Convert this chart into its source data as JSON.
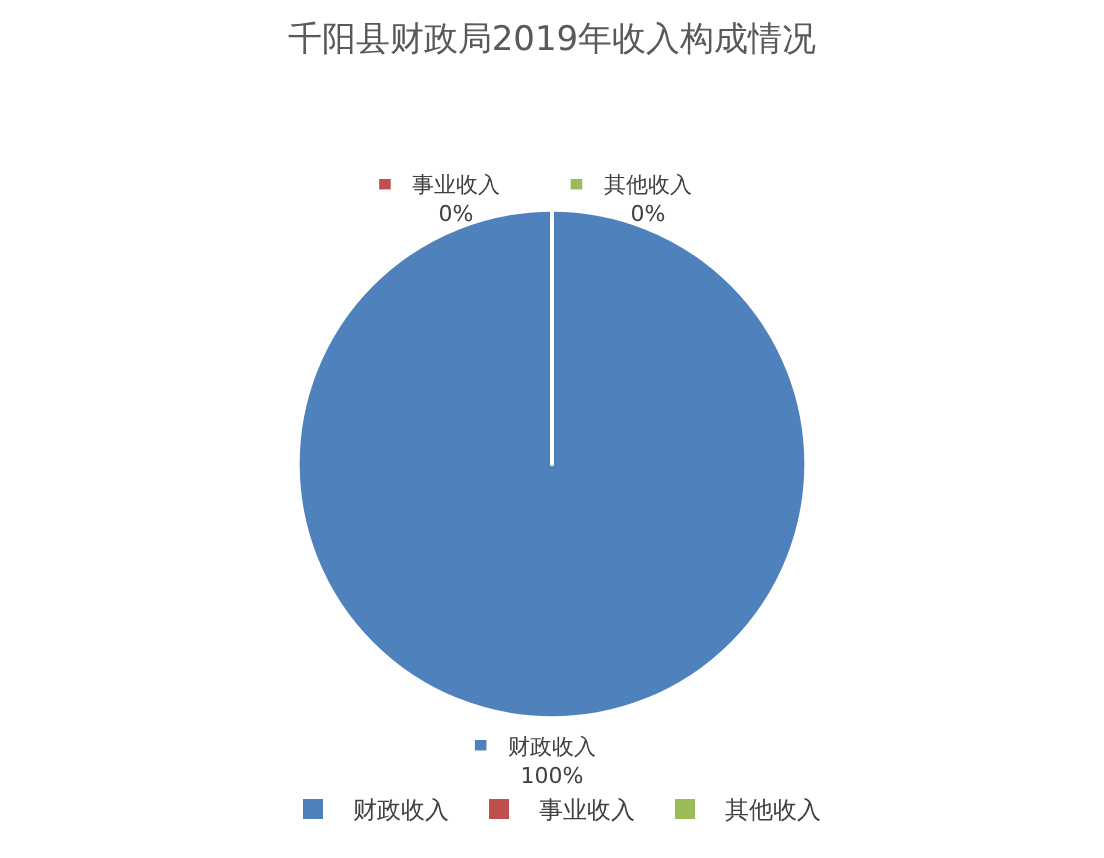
{
  "chart_data": {
    "type": "pie",
    "title": "千阳县财政局2019年收入构成情况",
    "categories": [
      "财政收入",
      "事业收入",
      "其他收入"
    ],
    "values": [
      100,
      0,
      0
    ],
    "colors": [
      "#4f81bd",
      "#c0504d",
      "#9bbb59"
    ],
    "value_labels": [
      "100%",
      "0%",
      "0%"
    ],
    "legend": "bottom"
  }
}
